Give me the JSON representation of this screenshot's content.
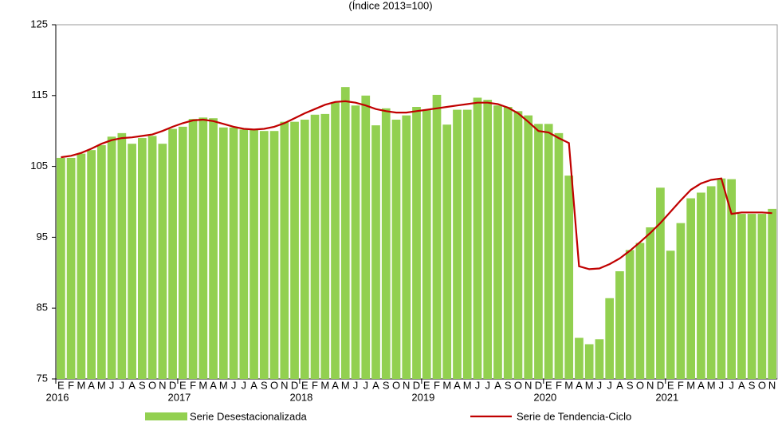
{
  "chart_data": {
    "type": "bar_line",
    "subtitle": "(Índice 2013=100)",
    "categories": [
      "E",
      "F",
      "M",
      "A",
      "M",
      "J",
      "J",
      "A",
      "S",
      "O",
      "N",
      "D",
      "E",
      "F",
      "M",
      "A",
      "M",
      "J",
      "J",
      "A",
      "S",
      "O",
      "N",
      "D",
      "E",
      "F",
      "M",
      "A",
      "M",
      "J",
      "J",
      "A",
      "S",
      "O",
      "N",
      "D",
      "E",
      "F",
      "M",
      "A",
      "M",
      "J",
      "J",
      "A",
      "S",
      "O",
      "N",
      "D",
      "E",
      "F",
      "M",
      "A",
      "M",
      "J",
      "J",
      "A",
      "S",
      "O",
      "N",
      "D",
      "E",
      "F",
      "M",
      "A",
      "M",
      "J",
      "J",
      "A",
      "S",
      "O",
      "N"
    ],
    "years": [
      "2016",
      "2017",
      "2018",
      "2019",
      "2020",
      "2021"
    ],
    "series": [
      {
        "name": "Serie Desestacionalizada",
        "color": "#92d050",
        "values": [
          106.2,
          106.2,
          106.8,
          107.3,
          108.0,
          109.2,
          109.7,
          108.2,
          109.0,
          109.3,
          108.2,
          110.3,
          110.6,
          111.7,
          111.9,
          111.8,
          110.5,
          110.5,
          110.2,
          110.2,
          110.0,
          110.0,
          111.3,
          111.3,
          111.6,
          112.3,
          112.4,
          114.0,
          116.2,
          113.6,
          115.0,
          110.8,
          113.2,
          111.6,
          112.2,
          113.4,
          113.0,
          115.1,
          110.9,
          113.0,
          113.0,
          114.7,
          114.4,
          113.6,
          113.4,
          112.8,
          112.2,
          111.0,
          111.0,
          109.7,
          103.7,
          80.8,
          79.9,
          80.6,
          86.4,
          90.2,
          93.2,
          94.2,
          96.4,
          102.0,
          93.1,
          97.0,
          100.5,
          101.3,
          102.2,
          103.3,
          103.2,
          98.3,
          98.3,
          98.3,
          99.0
        ]
      },
      {
        "name": "Serie de Tendencia-Ciclo",
        "color": "#c00000",
        "values": [
          106.3,
          106.5,
          106.9,
          107.5,
          108.2,
          108.7,
          109.0,
          109.1,
          109.3,
          109.5,
          110.0,
          110.6,
          111.1,
          111.5,
          111.6,
          111.4,
          111.0,
          110.6,
          110.3,
          110.2,
          110.3,
          110.6,
          111.1,
          111.8,
          112.5,
          113.1,
          113.7,
          114.1,
          114.2,
          114.0,
          113.6,
          113.1,
          112.8,
          112.6,
          112.6,
          112.8,
          113.0,
          113.2,
          113.4,
          113.6,
          113.8,
          114.0,
          114.0,
          113.8,
          113.3,
          112.5,
          111.3,
          110.0,
          109.8,
          109.0,
          108.3,
          90.9,
          90.5,
          90.6,
          91.2,
          92.0,
          93.1,
          94.3,
          95.6,
          97.0,
          98.6,
          100.2,
          101.7,
          102.6,
          103.1,
          103.3,
          98.3,
          98.5,
          98.5,
          98.5,
          98.4
        ]
      }
    ],
    "ylim": [
      75,
      125
    ],
    "yticks": [
      75,
      85,
      95,
      105,
      115,
      125
    ],
    "grid": false
  }
}
